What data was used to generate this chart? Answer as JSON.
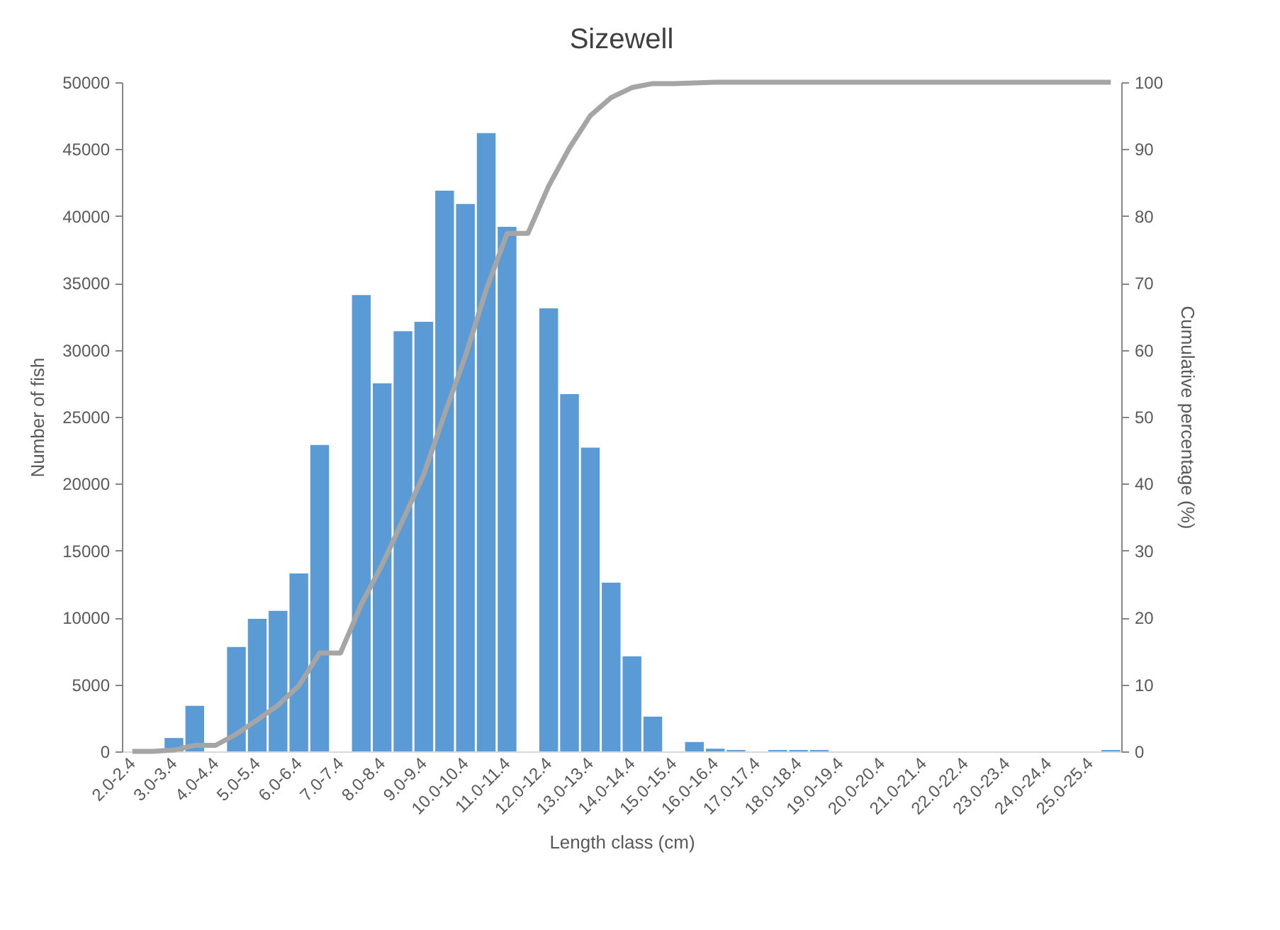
{
  "chart_data": {
    "type": "bar",
    "title": "Sizewell",
    "xlabel": "Length class (cm)",
    "ylabel": "Number of fish",
    "y2label": "Cumulative percentage  (%)",
    "categories": [
      "2.0-2.4",
      null,
      "3.0-3.4",
      null,
      "4.0-4.4",
      null,
      "5.0-5.4",
      null,
      "6.0-6.4",
      null,
      "7.0-7.4",
      null,
      "8.0-8.4",
      null,
      "9.0-9.4",
      null,
      "10.0-10.4",
      null,
      "11.0-11.4",
      null,
      "12.0-12.4",
      null,
      "13.0-13.4",
      null,
      "14.0-14.4",
      null,
      "15.0-15.4",
      null,
      "16.0-16.4",
      null,
      "17.0-17.4",
      null,
      "18.0-18.4",
      null,
      "19.0-19.4",
      null,
      "20.0-20.4",
      null,
      "21.0-21.4",
      null,
      "22.0-22.4",
      null,
      "23.0-23.4",
      null,
      "24.0-24.4",
      null,
      "25.0-25.4",
      null
    ],
    "series": [
      {
        "color": "#5b9bd5",
        "values": [
          0,
          0,
          1000,
          3400,
          0,
          7800,
          9900,
          10500,
          13300,
          22900,
          0,
          34100,
          27500,
          31400,
          32100,
          41900,
          40900,
          46200,
          39200,
          0,
          33100,
          26700,
          22700,
          12600,
          7100,
          2600,
          0,
          700,
          200,
          100,
          0,
          100,
          100,
          100,
          0,
          0,
          0,
          0,
          0,
          0,
          0,
          0,
          0,
          0,
          0,
          0,
          0,
          100
        ]
      },
      {
        "type": "line",
        "axis": "y2",
        "color": "#a5a5a5",
        "values": [
          0,
          0,
          0.2,
          0.9,
          0.9,
          2.6,
          4.7,
          6.9,
          9.8,
          14.7,
          14.7,
          22.0,
          27.9,
          34.6,
          41.4,
          50.4,
          59.1,
          69.0,
          77.4,
          77.4,
          84.5,
          90.2,
          95.0,
          97.7,
          99.2,
          99.8,
          99.8,
          99.9,
          100,
          100,
          100,
          100,
          100,
          100,
          100,
          100,
          100,
          100,
          100,
          100,
          100,
          100,
          100,
          100,
          100,
          100,
          100,
          100
        ]
      }
    ],
    "ylim": [
      0,
      50000
    ],
    "yticks": [
      0,
      5000,
      10000,
      15000,
      20000,
      25000,
      30000,
      35000,
      40000,
      45000,
      50000
    ],
    "y2lim": [
      0,
      100
    ],
    "y2ticks": [
      0,
      10,
      20,
      30,
      40,
      50,
      60,
      70,
      80,
      90,
      100
    ],
    "grid": false,
    "marker": "none"
  }
}
